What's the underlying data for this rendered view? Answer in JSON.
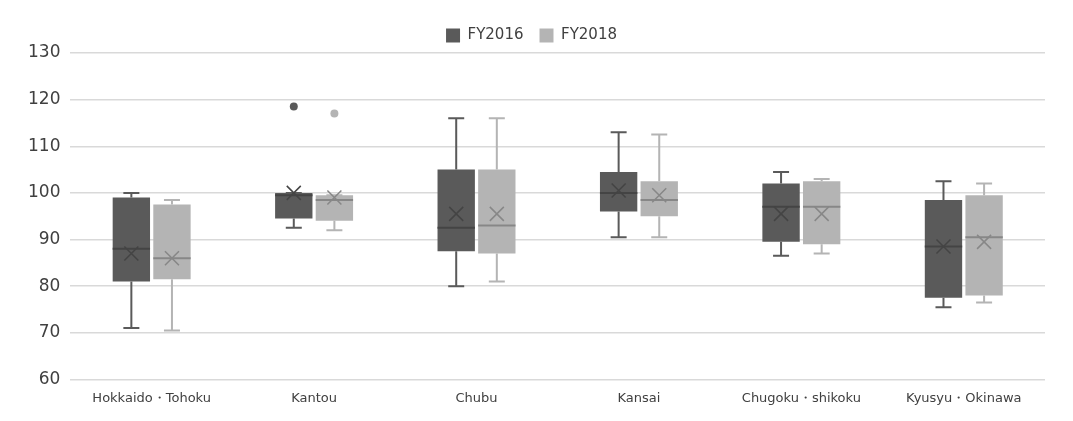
{
  "chart_data": {
    "type": "box",
    "categories": [
      "Hokkaido・Tohoku",
      "Kantou",
      "Chubu",
      "Kansai",
      "Chugoku・shikoku",
      "Kyusyu・Okinawa"
    ],
    "series": [
      {
        "name": "FY2016",
        "color": "#5a5a5a",
        "boxes": [
          {
            "low": 71,
            "q1": 81,
            "median": 88,
            "q3": 99,
            "high": 100,
            "mean": 87
          },
          {
            "low": 92.5,
            "q1": 94.5,
            "median": 99.5,
            "q3": 100,
            "high": 100,
            "mean": 100,
            "outliers": [
              118.5
            ]
          },
          {
            "low": 80,
            "q1": 87.5,
            "median": 92.5,
            "q3": 105,
            "high": 116,
            "mean": 95.5
          },
          {
            "low": 90.5,
            "q1": 96,
            "median": 100,
            "q3": 104.5,
            "high": 113,
            "mean": 100.5
          },
          {
            "low": 86.5,
            "q1": 89.5,
            "median": 97,
            "q3": 102,
            "high": 104.5,
            "mean": 95.5
          },
          {
            "low": 75.5,
            "q1": 77.5,
            "median": 88.5,
            "q3": 98.5,
            "high": 102.5,
            "mean": 88.5
          }
        ]
      },
      {
        "name": "FY2018",
        "color": "#b4b4b4",
        "boxes": [
          {
            "low": 70.5,
            "q1": 81.5,
            "median": 86,
            "q3": 97.5,
            "high": 98.5,
            "mean": 86
          },
          {
            "low": 92,
            "q1": 94,
            "median": 98.5,
            "q3": 99.5,
            "high": 99.5,
            "mean": 99,
            "outliers": [
              117
            ]
          },
          {
            "low": 81,
            "q1": 87,
            "median": 93,
            "q3": 105,
            "high": 116,
            "mean": 95.5
          },
          {
            "low": 90.5,
            "q1": 95,
            "median": 98.5,
            "q3": 102.5,
            "high": 112.5,
            "mean": 99.5
          },
          {
            "low": 87,
            "q1": 89,
            "median": 97,
            "q3": 102.5,
            "high": 103,
            "mean": 95.5
          },
          {
            "low": 76.5,
            "q1": 78,
            "median": 90.5,
            "q3": 99.5,
            "high": 102,
            "mean": 89.5
          }
        ]
      }
    ],
    "ylim": [
      60,
      130
    ],
    "yticks": [
      60,
      70,
      80,
      90,
      100,
      110,
      120,
      130
    ],
    "grid": "y",
    "legend": "top"
  }
}
